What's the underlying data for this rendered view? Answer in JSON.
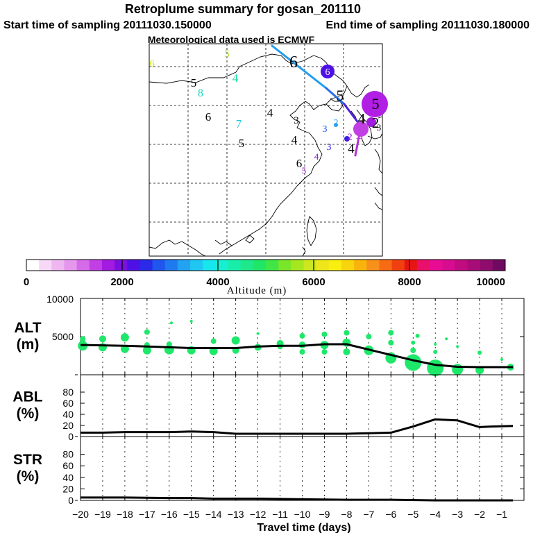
{
  "header": {
    "title": "Retroplume summary for gosan_201110",
    "start_label": "Start time of sampling 20111030.150000",
    "end_label": "End time of sampling 20111030.180000",
    "met_label": "Meteorological data used is ECMWF"
  },
  "colorbar": {
    "title": "Altitude (m)",
    "ticks": [
      "0",
      "2000",
      "4000",
      "6000",
      "8000",
      "10000"
    ],
    "range": [
      0,
      10000
    ],
    "colors": [
      "#ffffff",
      "#f7d8f7",
      "#efb7ef",
      "#e597ee",
      "#d56be8",
      "#c23fe3",
      "#a31ae0",
      "#7a10e0",
      "#4f10e6",
      "#2a2ae8",
      "#1f56ee",
      "#1f7af0",
      "#23a2f2",
      "#1fc6f2",
      "#18e6ef",
      "#18eed2",
      "#18eeaa",
      "#1ee88a",
      "#20e668",
      "#3fe646",
      "#7ae62a",
      "#a6e61f",
      "#cce61f",
      "#eee61a",
      "#f8ee10",
      "#f8d40c",
      "#f8b40c",
      "#f8901c",
      "#f86a14",
      "#f04010",
      "#e81414",
      "#e8106a",
      "#e80c94",
      "#d80c90",
      "#c00c80",
      "#a80c78",
      "#900c6c",
      "#700a60"
    ]
  },
  "map": {
    "numbers": [
      {
        "label": "6",
        "color": "#c8e626"
      },
      {
        "label": "5",
        "color": "#a8e624"
      },
      {
        "label": "6",
        "color": "#000000"
      },
      {
        "label": "6",
        "color": "#ffffff"
      },
      {
        "label": "5",
        "color": "#000000"
      },
      {
        "label": "8",
        "color": "#1ed8c0"
      },
      {
        "label": "4",
        "color": "#1ed8a0"
      },
      {
        "label": "5",
        "color": "#000000"
      },
      {
        "label": "5",
        "color": "#000000"
      },
      {
        "label": "6",
        "color": "#000000"
      },
      {
        "label": "7",
        "color": "#1ec8d8"
      },
      {
        "label": "4",
        "color": "#000000"
      },
      {
        "label": "3",
        "color": "#000000"
      },
      {
        "label": "3",
        "color": "#1a50e8"
      },
      {
        "label": "2",
        "color": "#23a2f2"
      },
      {
        "label": "4",
        "color": "#000000"
      },
      {
        "label": "3",
        "color": "#3020d8"
      },
      {
        "label": "5",
        "color": "#000000"
      },
      {
        "label": "4",
        "color": "#7a10e0"
      },
      {
        "label": "6",
        "color": "#000000"
      },
      {
        "label": "5",
        "color": "#a31ae0"
      },
      {
        "label": "4",
        "color": "#000000"
      },
      {
        "label": "2",
        "color": "#000000"
      },
      {
        "label": "1",
        "color": "#c23fe3"
      },
      {
        "label": "2",
        "color": "#a31ae0"
      },
      {
        "label": "4",
        "color": "#000000"
      },
      {
        "label": "3",
        "color": "#000000"
      }
    ]
  },
  "chart_data": [
    {
      "type": "line",
      "ylabel": "ALT (m)",
      "ylabel_lines": [
        "ALT",
        "(m)"
      ],
      "ylim": [
        0,
        10000
      ],
      "yticks": [
        0,
        5000,
        10000
      ],
      "ytick_labels": [
        "",
        "5000",
        "10000"
      ],
      "xlim": [
        -20,
        0
      ],
      "x": [
        -20,
        -18,
        -17,
        -16,
        -15,
        -14,
        -13,
        -12,
        -11,
        -10,
        -9,
        -8,
        -7,
        -6,
        -5,
        -4,
        -3,
        -2,
        -1,
        -0.5
      ],
      "values": [
        3900,
        3800,
        3700,
        3600,
        3500,
        3500,
        3500,
        3700,
        3800,
        3800,
        4000,
        4000,
        3300,
        2600,
        1900,
        1300,
        1050,
        1000,
        1000,
        1000
      ],
      "scatter": [
        {
          "x": -19.9,
          "y": 3800,
          "s": 7
        },
        {
          "x": -19.9,
          "y": 4700,
          "s": 4
        },
        {
          "x": -19.9,
          "y": 4100,
          "s": 5
        },
        {
          "x": -19.0,
          "y": 4700,
          "s": 5
        },
        {
          "x": -19.0,
          "y": 3600,
          "s": 6
        },
        {
          "x": -18.0,
          "y": 4900,
          "s": 6
        },
        {
          "x": -18.0,
          "y": 3400,
          "s": 6
        },
        {
          "x": -17.0,
          "y": 5600,
          "s": 4
        },
        {
          "x": -17.0,
          "y": 3900,
          "s": 4
        },
        {
          "x": -17.0,
          "y": 3200,
          "s": 6
        },
        {
          "x": -16.0,
          "y": 4000,
          "s": 4
        },
        {
          "x": -16.0,
          "y": 3300,
          "s": 7
        },
        {
          "x": -15.9,
          "y": 6800,
          "s": 2
        },
        {
          "x": -15.0,
          "y": 3200,
          "s": 6
        },
        {
          "x": -15.0,
          "y": 7000,
          "s": 2
        },
        {
          "x": -14.0,
          "y": 4400,
          "s": 4
        },
        {
          "x": -14.0,
          "y": 3100,
          "s": 6
        },
        {
          "x": -13.0,
          "y": 4500,
          "s": 6
        },
        {
          "x": -13.0,
          "y": 3200,
          "s": 5
        },
        {
          "x": -12.0,
          "y": 5400,
          "s": 2
        },
        {
          "x": -12.0,
          "y": 3600,
          "s": 5
        },
        {
          "x": -11.0,
          "y": 3700,
          "s": 4
        },
        {
          "x": -11.0,
          "y": 4100,
          "s": 5
        },
        {
          "x": -10.0,
          "y": 5100,
          "s": 4
        },
        {
          "x": -10.0,
          "y": 3900,
          "s": 5
        },
        {
          "x": -10.0,
          "y": 3000,
          "s": 4
        },
        {
          "x": -9.0,
          "y": 5300,
          "s": 4
        },
        {
          "x": -9.0,
          "y": 3900,
          "s": 6
        },
        {
          "x": -9.0,
          "y": 3000,
          "s": 4
        },
        {
          "x": -8.0,
          "y": 5500,
          "s": 4
        },
        {
          "x": -8.0,
          "y": 4200,
          "s": 6
        },
        {
          "x": -8.0,
          "y": 3000,
          "s": 5
        },
        {
          "x": -7.0,
          "y": 5000,
          "s": 4
        },
        {
          "x": -7.0,
          "y": 3200,
          "s": 7
        },
        {
          "x": -6.0,
          "y": 5500,
          "s": 4
        },
        {
          "x": -6.0,
          "y": 4200,
          "s": 4
        },
        {
          "x": -6.0,
          "y": 2200,
          "s": 8
        },
        {
          "x": -5.0,
          "y": 4200,
          "s": 3
        },
        {
          "x": -5.0,
          "y": 3200,
          "s": 4
        },
        {
          "x": -5.0,
          "y": 1600,
          "s": 12
        },
        {
          "x": -4.8,
          "y": 5100,
          "s": 3
        },
        {
          "x": -4.0,
          "y": 4000,
          "s": 2
        },
        {
          "x": -4.0,
          "y": 3000,
          "s": 3
        },
        {
          "x": -4.0,
          "y": 900,
          "s": 12
        },
        {
          "x": -3.5,
          "y": 4700,
          "s": 2
        },
        {
          "x": -3.0,
          "y": 3700,
          "s": 2
        },
        {
          "x": -3.0,
          "y": 700,
          "s": 8
        },
        {
          "x": -2.0,
          "y": 2900,
          "s": 3
        },
        {
          "x": -2.0,
          "y": 600,
          "s": 6
        },
        {
          "x": -1.0,
          "y": 2000,
          "s": 2
        },
        {
          "x": -0.6,
          "y": 1000,
          "s": 5
        }
      ]
    },
    {
      "type": "line",
      "ylabel": "ABL (%)",
      "ylabel_lines": [
        "ABL",
        "(%)"
      ],
      "ylim": [
        0,
        100
      ],
      "yticks": [
        0,
        20,
        40,
        60,
        80
      ],
      "ytick_labels": [
        "0",
        "20",
        "40",
        "60",
        "80"
      ],
      "xlim": [
        -20,
        0
      ],
      "x": [
        -20,
        -19,
        -18,
        -17,
        -16,
        -15,
        -14,
        -13,
        -12,
        -11,
        -10,
        -9,
        -8,
        -7,
        -6,
        -5,
        -4,
        -3,
        -2,
        -1.5,
        -0.5
      ],
      "values": [
        7,
        7,
        8,
        8,
        8,
        9,
        8,
        5,
        5,
        5,
        5,
        5,
        5,
        6,
        7,
        18,
        31,
        29,
        17,
        18,
        19
      ]
    },
    {
      "type": "line",
      "ylabel": "STR (%)",
      "ylabel_lines": [
        "STR",
        "(%)"
      ],
      "ylim": [
        0,
        100
      ],
      "yticks": [
        0,
        20,
        40,
        60,
        80
      ],
      "ytick_labels": [
        "0",
        "20",
        "40",
        "60",
        "80"
      ],
      "xlim": [
        -20,
        0
      ],
      "xlabel": "Travel time (days)",
      "xtick_labels": [
        "−20",
        "−19",
        "−18",
        "−17",
        "−16",
        "−15",
        "−14",
        "−13",
        "−12",
        "−11",
        "−10",
        "−9",
        "−8",
        "−7",
        "−6",
        "−5",
        "−4",
        "−3",
        "−2",
        "−1"
      ],
      "x": [
        -20,
        -18,
        -16,
        -15,
        -14,
        -12,
        -10,
        -8,
        -6,
        -4,
        -2,
        -0.5
      ],
      "values": [
        5,
        5,
        4,
        4,
        3,
        3,
        2,
        1,
        1,
        0,
        0,
        0
      ]
    }
  ]
}
